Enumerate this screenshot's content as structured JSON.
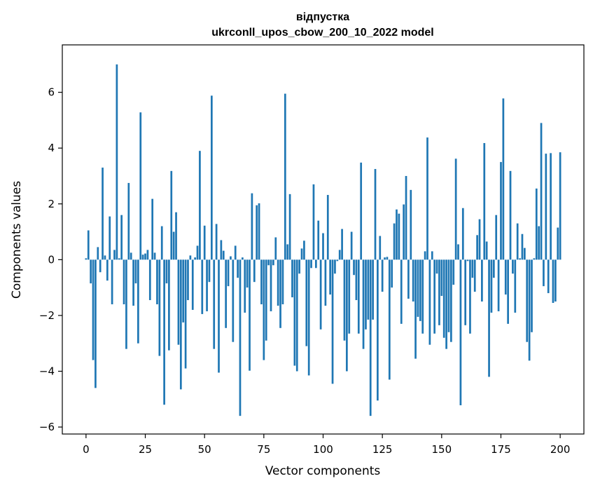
{
  "chart_data": {
    "type": "bar",
    "title": "відпустка",
    "subtitle": "ukrconll_upos_cbow_200_10_2022 model",
    "xlabel": "Vector components",
    "ylabel": "Components values",
    "xlim": [
      -10,
      210
    ],
    "ylim": [
      -6.25,
      7.7
    ],
    "xticks": [
      0,
      25,
      50,
      75,
      100,
      125,
      150,
      175,
      200
    ],
    "yticks": [
      -6,
      -4,
      -2,
      0,
      2,
      4,
      6
    ],
    "xtick_labels": [
      "0",
      "25",
      "50",
      "75",
      "100",
      "125",
      "150",
      "175",
      "200"
    ],
    "ytick_labels": [
      "−6",
      "−4",
      "−2",
      "0",
      "2",
      "4",
      "6"
    ],
    "bar_color": "#1f77b4",
    "values": [
      0.05,
      1.05,
      -0.85,
      -3.6,
      -4.6,
      0.45,
      -0.45,
      3.3,
      0.15,
      -0.75,
      1.55,
      -1.6,
      0.35,
      7.0,
      0.05,
      1.6,
      -1.6,
      -3.2,
      2.75,
      0.25,
      -1.65,
      -0.85,
      -3.0,
      5.28,
      0.18,
      0.22,
      0.35,
      -1.45,
      2.18,
      0.25,
      -1.6,
      -3.45,
      1.2,
      -5.2,
      -0.85,
      -3.25,
      3.18,
      1.0,
      1.7,
      -3.05,
      -4.65,
      -2.25,
      -3.9,
      -1.45,
      0.15,
      -1.8,
      0.08,
      0.5,
      3.9,
      -1.95,
      1.22,
      -1.85,
      -0.8,
      5.88,
      -3.2,
      1.28,
      -4.05,
      0.7,
      0.32,
      -2.45,
      -0.95,
      0.12,
      -2.95,
      0.5,
      -0.65,
      -5.6,
      0.08,
      -1.9,
      -1.0,
      -3.98,
      2.38,
      -0.8,
      1.95,
      2.02,
      -1.6,
      -3.6,
      -2.9,
      -0.2,
      -1.85,
      -0.2,
      0.8,
      -1.65,
      -2.45,
      -1.6,
      5.95,
      0.55,
      2.35,
      -1.35,
      -3.8,
      -4.0,
      -0.5,
      0.4,
      0.68,
      -3.1,
      -4.15,
      -0.3,
      2.7,
      -0.3,
      1.4,
      -2.5,
      0.95,
      -1.65,
      2.32,
      -1.25,
      -4.45,
      -0.5,
      -0.05,
      0.35,
      1.1,
      -2.9,
      -4.0,
      -2.65,
      1.0,
      -0.55,
      -1.45,
      -2.65,
      3.48,
      -3.2,
      -2.5,
      -2.15,
      -5.6,
      -2.15,
      3.25,
      -5.05,
      0.85,
      -1.15,
      0.08,
      0.1,
      -4.3,
      -1.0,
      1.3,
      1.8,
      1.65,
      -2.3,
      1.98,
      3.0,
      -1.4,
      2.5,
      -1.5,
      -3.55,
      -2.05,
      -2.2,
      -2.65,
      0.3,
      4.38,
      -3.05,
      0.3,
      -2.65,
      -0.5,
      -2.35,
      -1.3,
      -2.8,
      -3.2,
      -2.6,
      -2.95,
      -0.9,
      3.62,
      0.55,
      -5.22,
      1.85,
      -2.35,
      -0.05,
      -2.65,
      -0.65,
      -1.15,
      0.88,
      1.45,
      -1.5,
      4.18,
      0.65,
      -4.2,
      -1.9,
      -0.65,
      1.6,
      -1.85,
      3.5,
      5.78,
      -1.25,
      -2.3,
      3.18,
      -0.5,
      -1.9,
      1.3,
      0.05,
      0.92,
      0.42,
      -2.95,
      -3.62,
      -2.6,
      0.05,
      2.55,
      1.2,
      4.9,
      -0.95,
      3.8,
      -1.2,
      3.82,
      -1.55,
      -1.5,
      1.15,
      3.85
    ]
  }
}
